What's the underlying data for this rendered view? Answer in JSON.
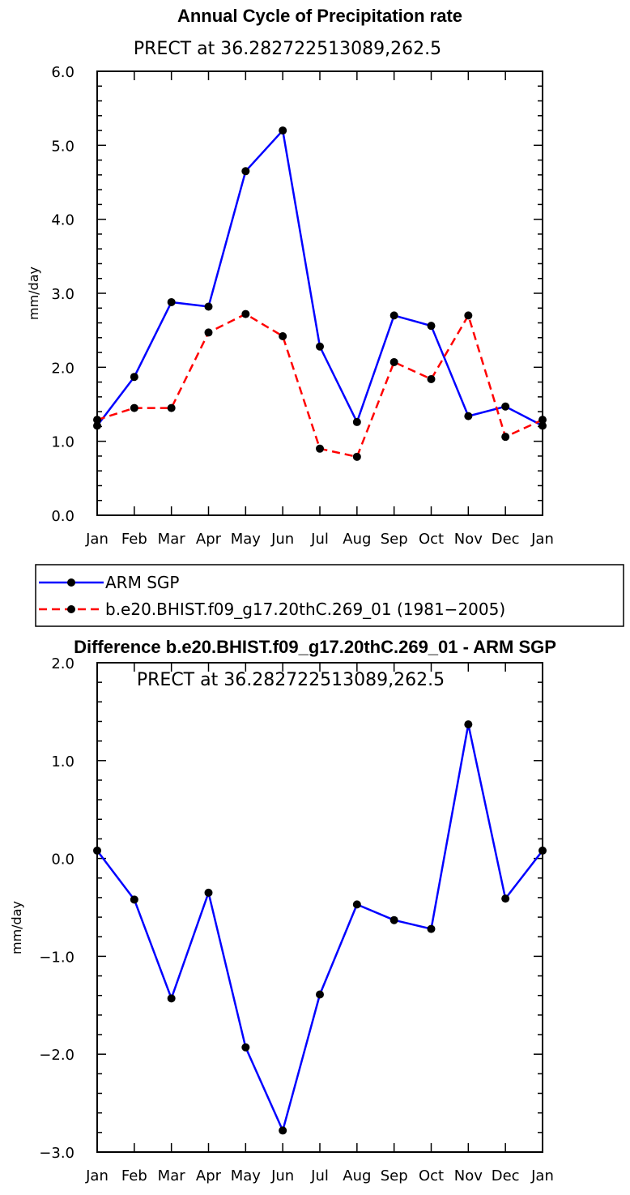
{
  "chart_data": [
    {
      "type": "line",
      "title": "Annual Cycle of Precipitation rate",
      "subtitle": "PRECT at 36.282722513089,262.5",
      "xlabel": "",
      "ylabel": "mm/day",
      "categories": [
        "Jan",
        "Feb",
        "Mar",
        "Apr",
        "May",
        "Jun",
        "Jul",
        "Aug",
        "Sep",
        "Oct",
        "Nov",
        "Dec",
        "Jan"
      ],
      "ylim": [
        0,
        6
      ],
      "yticks": [
        "0.0",
        "1.0",
        "2.0",
        "3.0",
        "4.0",
        "5.0",
        "6.0"
      ],
      "series": [
        {
          "name": "ARM SGP",
          "color": "#0000ff",
          "dash": "solid",
          "values": [
            1.21,
            1.87,
            2.88,
            2.82,
            4.65,
            5.2,
            2.28,
            1.26,
            2.7,
            2.56,
            1.34,
            1.47,
            1.21
          ]
        },
        {
          "name": "b.e20.BHIST.f09_g17.20thC.269_01 (1981−2005)",
          "color": "#ff0000",
          "dash": "dashed",
          "values": [
            1.29,
            1.45,
            1.45,
            2.47,
            2.72,
            2.42,
            0.9,
            0.79,
            2.07,
            1.84,
            2.7,
            1.06,
            1.29
          ]
        }
      ],
      "legend": "below"
    },
    {
      "type": "line",
      "title": "Difference b.e20.BHIST.f09_g17.20thC.269_01 - ARM SGP",
      "subtitle": "PRECT at 36.282722513089,262.5",
      "xlabel": "",
      "ylabel": "mm/day",
      "categories": [
        "Jan",
        "Feb",
        "Mar",
        "Apr",
        "May",
        "Jun",
        "Jul",
        "Aug",
        "Sep",
        "Oct",
        "Nov",
        "Dec",
        "Jan"
      ],
      "ylim": [
        -3,
        2
      ],
      "yticks": [
        "−3.0",
        "−2.0",
        "−1.0",
        "0.0",
        "1.0",
        "2.0"
      ],
      "series": [
        {
          "name": "Difference",
          "color": "#0000ff",
          "dash": "solid",
          "values": [
            0.08,
            -0.42,
            -1.43,
            -0.35,
            -1.93,
            -2.78,
            -1.39,
            -0.47,
            -0.63,
            -0.72,
            1.37,
            -0.41,
            0.08
          ]
        }
      ]
    }
  ]
}
